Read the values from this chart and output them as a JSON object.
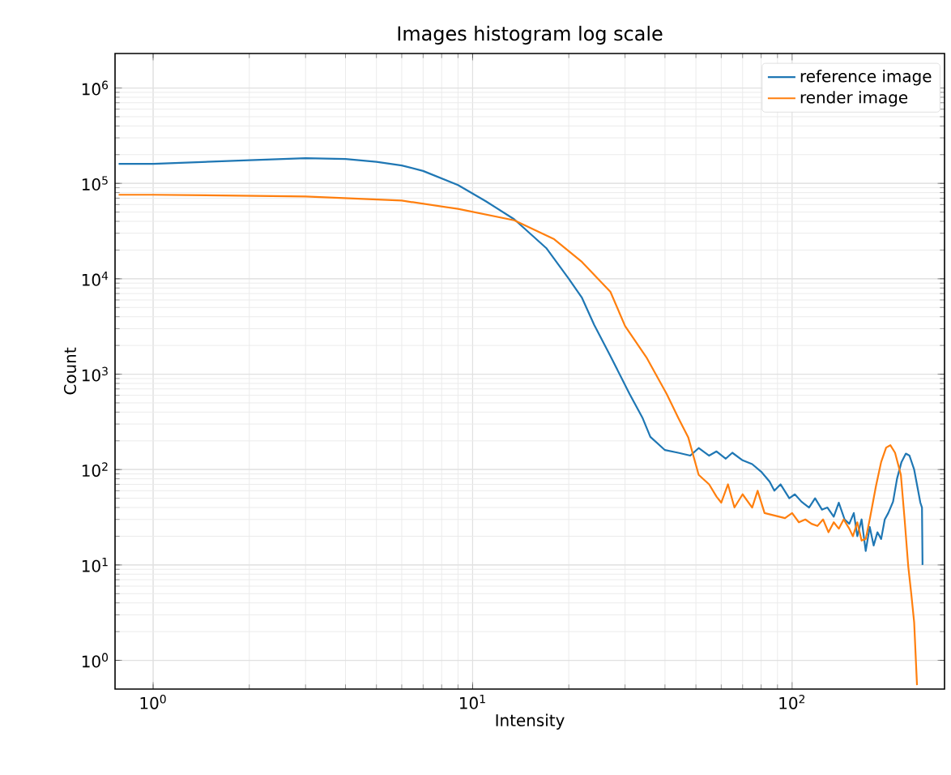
{
  "chart_data": {
    "type": "line",
    "title": "Images histogram log scale",
    "xlabel": "Intensity",
    "ylabel": "Count",
    "log": "xy",
    "grid": true,
    "legend": "top right",
    "xlim": [
      0.76,
      300
    ],
    "ylim": [
      0.5,
      2300000
    ],
    "xticks": [
      {
        "value": 1,
        "label": "10$^{0}$"
      },
      {
        "value": 10,
        "label": "10$^{1}$"
      },
      {
        "value": 100,
        "label": "10$^{2}$"
      }
    ],
    "yticks": [
      {
        "value": 1,
        "label": "10$^{0}$"
      },
      {
        "value": 10,
        "label": "10$^{1}$"
      },
      {
        "value": 100,
        "label": "10$^{2}$"
      },
      {
        "value": 1000,
        "label": "10$^{3}$"
      },
      {
        "value": 10000,
        "label": "10$^{4}$"
      },
      {
        "value": 100000,
        "label": "10$^{5}$"
      },
      {
        "value": 1000000,
        "label": "10$^{6}$"
      }
    ],
    "series": [
      {
        "name": "reference image",
        "color": "#1f77b4",
        "x": [
          0.78,
          1,
          2,
          3,
          4,
          5,
          6,
          7,
          9,
          11,
          13.5,
          17,
          20,
          22,
          24,
          27,
          31,
          34,
          36,
          40,
          44,
          48,
          51,
          55,
          58,
          62,
          65,
          70,
          75,
          80,
          85,
          88,
          92,
          98,
          102,
          107,
          113,
          118,
          124,
          129,
          135,
          140,
          146,
          151,
          156,
          160,
          165,
          170,
          175,
          180,
          185,
          190,
          195,
          200,
          207,
          213,
          220,
          227,
          233,
          241,
          248,
          252,
          255,
          256
        ],
        "values": [
          160000,
          160000,
          175000,
          184000,
          180000,
          168000,
          154000,
          135000,
          96000,
          65000,
          42000,
          21000,
          10000,
          6300,
          3300,
          1550,
          620,
          350,
          220,
          160,
          150,
          140,
          168,
          140,
          155,
          130,
          150,
          125,
          114,
          95,
          75,
          60,
          70,
          50,
          55,
          46,
          40,
          50,
          38,
          40,
          32,
          45,
          30,
          27,
          35,
          20,
          30,
          14,
          25,
          16,
          22,
          18.7,
          30,
          35,
          46,
          80,
          120,
          147,
          140,
          100,
          60,
          45,
          40,
          10
        ]
      },
      {
        "name": "render image",
        "color": "#ff7f0e",
        "x": [
          0.78,
          1,
          3,
          6,
          9,
          13.5,
          18,
          22,
          27,
          30,
          35,
          40.5,
          44,
          47.3,
          51,
          55,
          58,
          60,
          63,
          66,
          70,
          75,
          78,
          82,
          88,
          95,
          100,
          105,
          110,
          115,
          120,
          125,
          130,
          135,
          140,
          145,
          151,
          155,
          160,
          165,
          170,
          175,
          183,
          190,
          197,
          203,
          210,
          219,
          225,
          231,
          236,
          241,
          244,
          246
        ],
        "values": [
          76000,
          76000,
          73000,
          66000,
          54000,
          41000,
          26000,
          15000,
          7300,
          3200,
          1500,
          620,
          350,
          218,
          88,
          70,
          52,
          45,
          70,
          40,
          55,
          40,
          60,
          35,
          33,
          31,
          35,
          28,
          30,
          27,
          25.6,
          30,
          22,
          28,
          24,
          30,
          24,
          20,
          28,
          18,
          18.7,
          30,
          67,
          120,
          170,
          180,
          150,
          88,
          30,
          9.6,
          5,
          2.5,
          1,
          0.55
        ]
      }
    ]
  }
}
